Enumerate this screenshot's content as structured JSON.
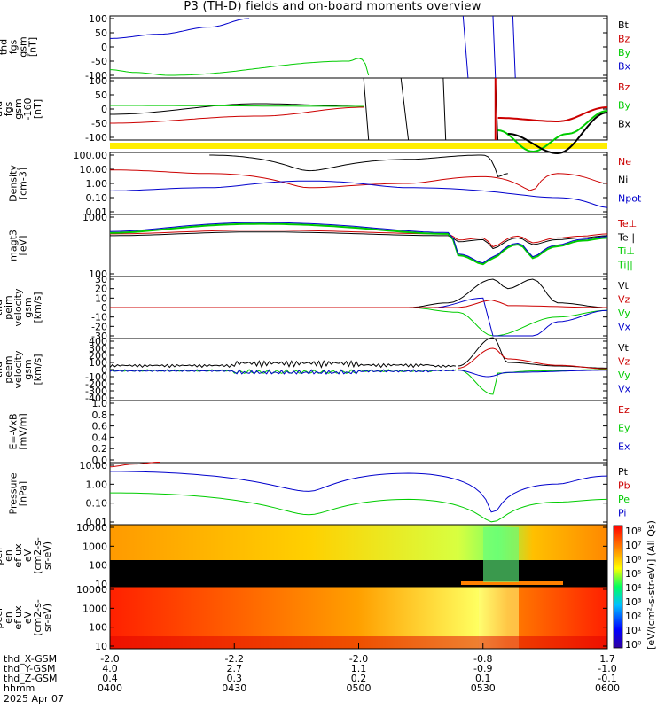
{
  "title": "P3 (TH-D) fields and on-board moments overview",
  "panels": [
    {
      "id": "fgs",
      "ylabel": [
        "thd",
        "fgs",
        "gsm",
        "[nT]"
      ],
      "ticks": [
        "100",
        "50",
        "0",
        "-50",
        "-100"
      ],
      "legend": [
        {
          "t": "Bt",
          "c": "#000000"
        },
        {
          "t": "Bz",
          "c": "#cc0000"
        },
        {
          "t": "By",
          "c": "#00cc00"
        },
        {
          "t": "Bx",
          "c": "#0000cc"
        }
      ]
    },
    {
      "id": "fgs2",
      "ylabel": [
        "thd",
        "fgs",
        "gsm",
        "-160",
        "[nT]"
      ],
      "ticks": [
        "100",
        "50",
        "0",
        "-50",
        "-100"
      ],
      "legend": [
        {
          "t": "Bz",
          "c": "#cc0000"
        },
        {
          "t": "By",
          "c": "#00cc00"
        },
        {
          "t": "Bx",
          "c": "#000000"
        }
      ]
    },
    {
      "id": "density",
      "ylabel": [
        "Density",
        "[cm-3]"
      ],
      "ticks": [
        "100.00",
        "10.00",
        "1.00",
        "0.10",
        "0.01"
      ],
      "legend": [
        {
          "t": "Ne",
          "c": "#cc0000"
        },
        {
          "t": "Ni",
          "c": "#000000"
        },
        {
          "t": "Npot",
          "c": "#0000cc"
        }
      ]
    },
    {
      "id": "temp",
      "ylabel": [
        "magt3",
        "[eV]"
      ],
      "ticks": [
        "1000",
        "100"
      ],
      "legend": [
        {
          "t": "Te⊥",
          "c": "#cc0000"
        },
        {
          "t": "Te||",
          "c": "#000000"
        },
        {
          "t": "Ti⊥",
          "c": "#00cc00"
        },
        {
          "t": "Ti||",
          "c": "#00cc00"
        }
      ]
    },
    {
      "id": "peimvel",
      "ylabel": [
        "thd",
        "peim",
        "velocity",
        "gsm",
        "[km/s]"
      ],
      "ticks": [
        "30",
        "20",
        "10",
        "0",
        "-10",
        "-20",
        "-30"
      ],
      "legend": [
        {
          "t": "Vt",
          "c": "#000000"
        },
        {
          "t": "Vz",
          "c": "#cc0000"
        },
        {
          "t": "Vy",
          "c": "#00cc00"
        },
        {
          "t": "Vx",
          "c": "#0000cc"
        }
      ]
    },
    {
      "id": "peemvel",
      "ylabel": [
        "thd",
        "peem",
        "velocity",
        "gsm",
        "[km/s]"
      ],
      "ticks": [
        "400",
        "300",
        "200",
        "100",
        "0",
        "-100",
        "-200",
        "-300",
        "-400"
      ],
      "legend": [
        {
          "t": "Vt",
          "c": "#000000"
        },
        {
          "t": "Vz",
          "c": "#cc0000"
        },
        {
          "t": "Vy",
          "c": "#00cc00"
        },
        {
          "t": "Vx",
          "c": "#0000cc"
        }
      ]
    },
    {
      "id": "efield",
      "ylabel": [
        "E=-VxB",
        "[mV/m]"
      ],
      "ticks": [
        "1.0",
        "0.8",
        "0.6",
        "0.4",
        "0.2",
        "0.0"
      ],
      "legend": [
        {
          "t": "Ez",
          "c": "#cc0000"
        },
        {
          "t": "Ey",
          "c": "#00cc00"
        },
        {
          "t": "Ex",
          "c": "#0000cc"
        }
      ]
    },
    {
      "id": "pressure",
      "ylabel": [
        "Pressure",
        "[nPa]"
      ],
      "ticks": [
        "10.00",
        "1.00",
        "0.10",
        "0.01"
      ],
      "legend": [
        {
          "t": "Pt",
          "c": "#000000"
        },
        {
          "t": "Pb",
          "c": "#cc0000"
        },
        {
          "t": "Pe",
          "c": "#00cc00"
        },
        {
          "t": "Pi",
          "c": "#0000cc"
        }
      ]
    },
    {
      "id": "peir",
      "ylabel": [
        "thd",
        "peir",
        "en",
        "eflux",
        "eV",
        "(cm2-s-",
        "sr-eV)"
      ],
      "ticks": [
        "10000",
        "1000",
        "100",
        "10"
      ],
      "legend": []
    },
    {
      "id": "peer",
      "ylabel": [
        "thd",
        "peer",
        "en",
        "eflux",
        "eV",
        "(cm2-s-",
        "sr-eV)"
      ],
      "ticks": [
        "10000",
        "1000",
        "100",
        "10"
      ],
      "legend": []
    }
  ],
  "xaxis": {
    "rows": [
      {
        "label": "thd_X-GSM",
        "vals": [
          "-2.0",
          "-2.2",
          "-2.0",
          "-0.8",
          "1.7"
        ]
      },
      {
        "label": "thd_Y-GSM",
        "vals": [
          "4.0",
          "2.7",
          "1.1",
          "-0.9",
          "-1.0"
        ]
      },
      {
        "label": "thd_Z-GSM",
        "vals": [
          "0.4",
          "0.3",
          "0.2",
          "0.1",
          "-0.1"
        ]
      },
      {
        "label": "hhmm",
        "vals": [
          "0400",
          "0430",
          "0500",
          "0530",
          "0600"
        ]
      }
    ],
    "date": "2025 Apr 07"
  },
  "colorbar": {
    "ticks": [
      "10⁸",
      "10⁷",
      "10⁶",
      "10⁵",
      "10⁴",
      "10³",
      "10²",
      "10¹",
      "10⁰"
    ],
    "ticks2": [
      "10⁸",
      "10⁷",
      "10⁶",
      "10⁵",
      "10⁴",
      "10³",
      "10²",
      "10¹",
      "10⁰"
    ],
    "label": "[eV/(cm²-s-str-eV)] (All Qs)"
  },
  "chart_data": {
    "type": "line",
    "title": "P3 (TH-D) fields and on-board moments overview",
    "x_hhmm": [
      "0400",
      "0430",
      "0500",
      "0530",
      "0600"
    ],
    "panels": {
      "fgs": {
        "ylim": [
          -100,
          100
        ],
        "series": [
          {
            "name": "Bx",
            "x": [
              0,
              0.1,
              0.2,
              0.28
            ],
            "y": [
              30,
              45,
              70,
              100
            ]
          },
          {
            "name": "By",
            "x": [
              0,
              0.05,
              0.12,
              0.48,
              0.5,
              0.51,
              0.52
            ],
            "y": [
              -80,
              -90,
              -100,
              -50,
              -40,
              -45,
              -100
            ]
          }
        ]
      },
      "density": {
        "ylim_log": [
          0.01,
          100
        ],
        "series": [
          {
            "name": "Ne",
            "x": [
              0,
              0.2,
              0.4,
              0.6,
              0.75,
              0.85,
              0.9,
              1.0
            ],
            "y": [
              9,
              5,
              0.5,
              1,
              3,
              0.3,
              5,
              1
            ]
          },
          {
            "name": "Ni",
            "x": [
              0.2,
              0.4,
              0.6,
              0.75,
              0.78,
              0.8
            ],
            "y": [
              100,
              8,
              50,
              100,
              3,
              5
            ]
          },
          {
            "name": "Npot",
            "x": [
              0,
              0.2,
              0.4,
              0.6,
              0.9,
              1.0
            ],
            "y": [
              0.3,
              0.5,
              1.5,
              0.5,
              0.1,
              0.02
            ]
          }
        ]
      },
      "pressure": {
        "ylim_log": [
          0.01,
          10
        ],
        "series": [
          {
            "name": "Pi",
            "x": [
              0,
              0.4,
              0.6,
              0.77,
              0.9,
              1.0
            ],
            "y": [
              20,
              1,
              15,
              0.03,
              3,
              10
            ]
          },
          {
            "name": "Pe",
            "x": [
              0,
              0.4,
              0.6,
              0.77,
              0.9,
              1.0
            ],
            "y": [
              0.8,
              0.03,
              0.3,
              0.01,
              0.2,
              0.3
            ]
          }
        ]
      }
    }
  }
}
